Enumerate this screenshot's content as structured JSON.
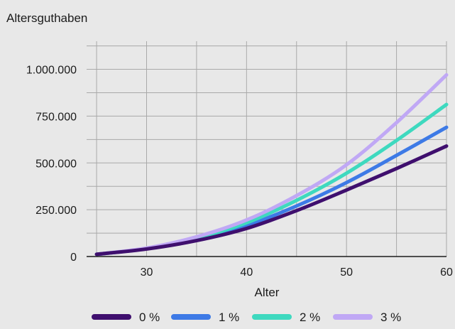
{
  "chart_data": {
    "type": "line",
    "title": "",
    "ylabel": "Altersguthaben",
    "xlabel": "Alter",
    "xlim": [
      24,
      60
    ],
    "ylim": [
      0,
      1150000
    ],
    "xticks": [
      30,
      40,
      50,
      60
    ],
    "xtick_labels": [
      "30",
      "40",
      "50",
      "60"
    ],
    "yticks": [
      0,
      250000,
      500000,
      750000,
      1000000
    ],
    "ytick_labels": [
      "0",
      "250.000",
      "500.000",
      "750.000",
      "1.000.000"
    ],
    "grid": true,
    "legend": {
      "position": "bottom"
    },
    "x": [
      25,
      30,
      35,
      40,
      45,
      50,
      55,
      60
    ],
    "series": [
      {
        "name": "0 %",
        "color": "#3f0f6e",
        "values": [
          12000,
          40000,
          85000,
          150000,
          245000,
          355000,
          470000,
          590000
        ]
      },
      {
        "name": "1 %",
        "color": "#3d7ae6",
        "values": [
          12000,
          42000,
          93000,
          165000,
          270000,
          395000,
          540000,
          690000
        ]
      },
      {
        "name": "2 %",
        "color": "#3ed9bf",
        "values": [
          12000,
          43000,
          98000,
          180000,
          300000,
          445000,
          620000,
          812000
        ]
      },
      {
        "name": "3 %",
        "color": "#c0a8f5",
        "values": [
          12000,
          45000,
          105000,
          195000,
          325000,
          490000,
          715000,
          970000
        ]
      }
    ]
  }
}
